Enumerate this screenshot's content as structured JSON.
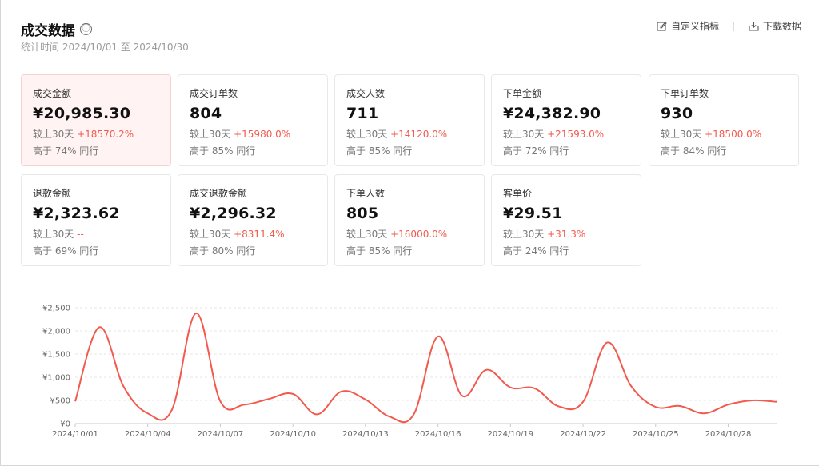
{
  "header": {
    "title": "成交数据",
    "info_icon": "ⓘ",
    "subtitle": "统计时间 2024/10/01 至 2024/10/30",
    "actions": [
      {
        "label": "自定义指标",
        "icon": "edit-icon"
      },
      {
        "label": "下载数据",
        "icon": "download-icon"
      }
    ]
  },
  "metrics": [
    {
      "label": "成交金额",
      "value": "¥20,985.30",
      "compare_prefix": "较上30天",
      "delta": "+18570.2%",
      "peer": "高于 74% 同行",
      "active": true
    },
    {
      "label": "成交订单数",
      "value": "804",
      "compare_prefix": "较上30天",
      "delta": "+15980.0%",
      "peer": "高于 85% 同行"
    },
    {
      "label": "成交人数",
      "value": "711",
      "compare_prefix": "较上30天",
      "delta": "+14120.0%",
      "peer": "高于 85% 同行"
    },
    {
      "label": "下单金额",
      "value": "¥24,382.90",
      "compare_prefix": "较上30天",
      "delta": "+21593.0%",
      "peer": "高于 72% 同行"
    },
    {
      "label": "下单订单数",
      "value": "930",
      "compare_prefix": "较上30天",
      "delta": "+18500.0%",
      "peer": "高于 84% 同行"
    },
    {
      "label": "退款金额",
      "value": "¥2,323.62",
      "compare_prefix": "较上30天",
      "delta": "--",
      "peer": "高于 69% 同行"
    },
    {
      "label": "成交退款金额",
      "value": "¥2,296.32",
      "compare_prefix": "较上30天",
      "delta": "+8311.4%",
      "peer": "高于 80% 同行"
    },
    {
      "label": "下单人数",
      "value": "805",
      "compare_prefix": "较上30天",
      "delta": "+16000.0%",
      "peer": "高于 85% 同行"
    },
    {
      "label": "客单价",
      "value": "¥29.51",
      "compare_prefix": "较上30天",
      "delta": "+31.3%",
      "peer": "高于 24% 同行"
    }
  ],
  "chart_data": {
    "type": "line",
    "series_color": "#f25a4d",
    "grid": true,
    "yticks": [
      "¥0",
      "¥500",
      "¥1,000",
      "¥1,500",
      "¥2,000",
      "¥2,500"
    ],
    "ylim": [
      0,
      2500
    ],
    "x_tick_labels": [
      "2024/10/01",
      "2024/10/04",
      "2024/10/07",
      "2024/10/10",
      "2024/10/13",
      "2024/10/16",
      "2024/10/19",
      "2024/10/22",
      "2024/10/25",
      "2024/10/28"
    ],
    "x": [
      "2024/10/01",
      "2024/10/02",
      "2024/10/03",
      "2024/10/04",
      "2024/10/05",
      "2024/10/06",
      "2024/10/07",
      "2024/10/08",
      "2024/10/09",
      "2024/10/10",
      "2024/10/11",
      "2024/10/12",
      "2024/10/13",
      "2024/10/14",
      "2024/10/15",
      "2024/10/16",
      "2024/10/17",
      "2024/10/18",
      "2024/10/19",
      "2024/10/20",
      "2024/10/21",
      "2024/10/22",
      "2024/10/23",
      "2024/10/24",
      "2024/10/25",
      "2024/10/26",
      "2024/10/27",
      "2024/10/28",
      "2024/10/29",
      "2024/10/30"
    ],
    "values": [
      480,
      2080,
      800,
      220,
      300,
      2380,
      480,
      410,
      530,
      640,
      200,
      690,
      520,
      150,
      200,
      1880,
      600,
      1160,
      780,
      760,
      370,
      470,
      1750,
      800,
      360,
      380,
      220,
      410,
      500,
      470
    ]
  }
}
